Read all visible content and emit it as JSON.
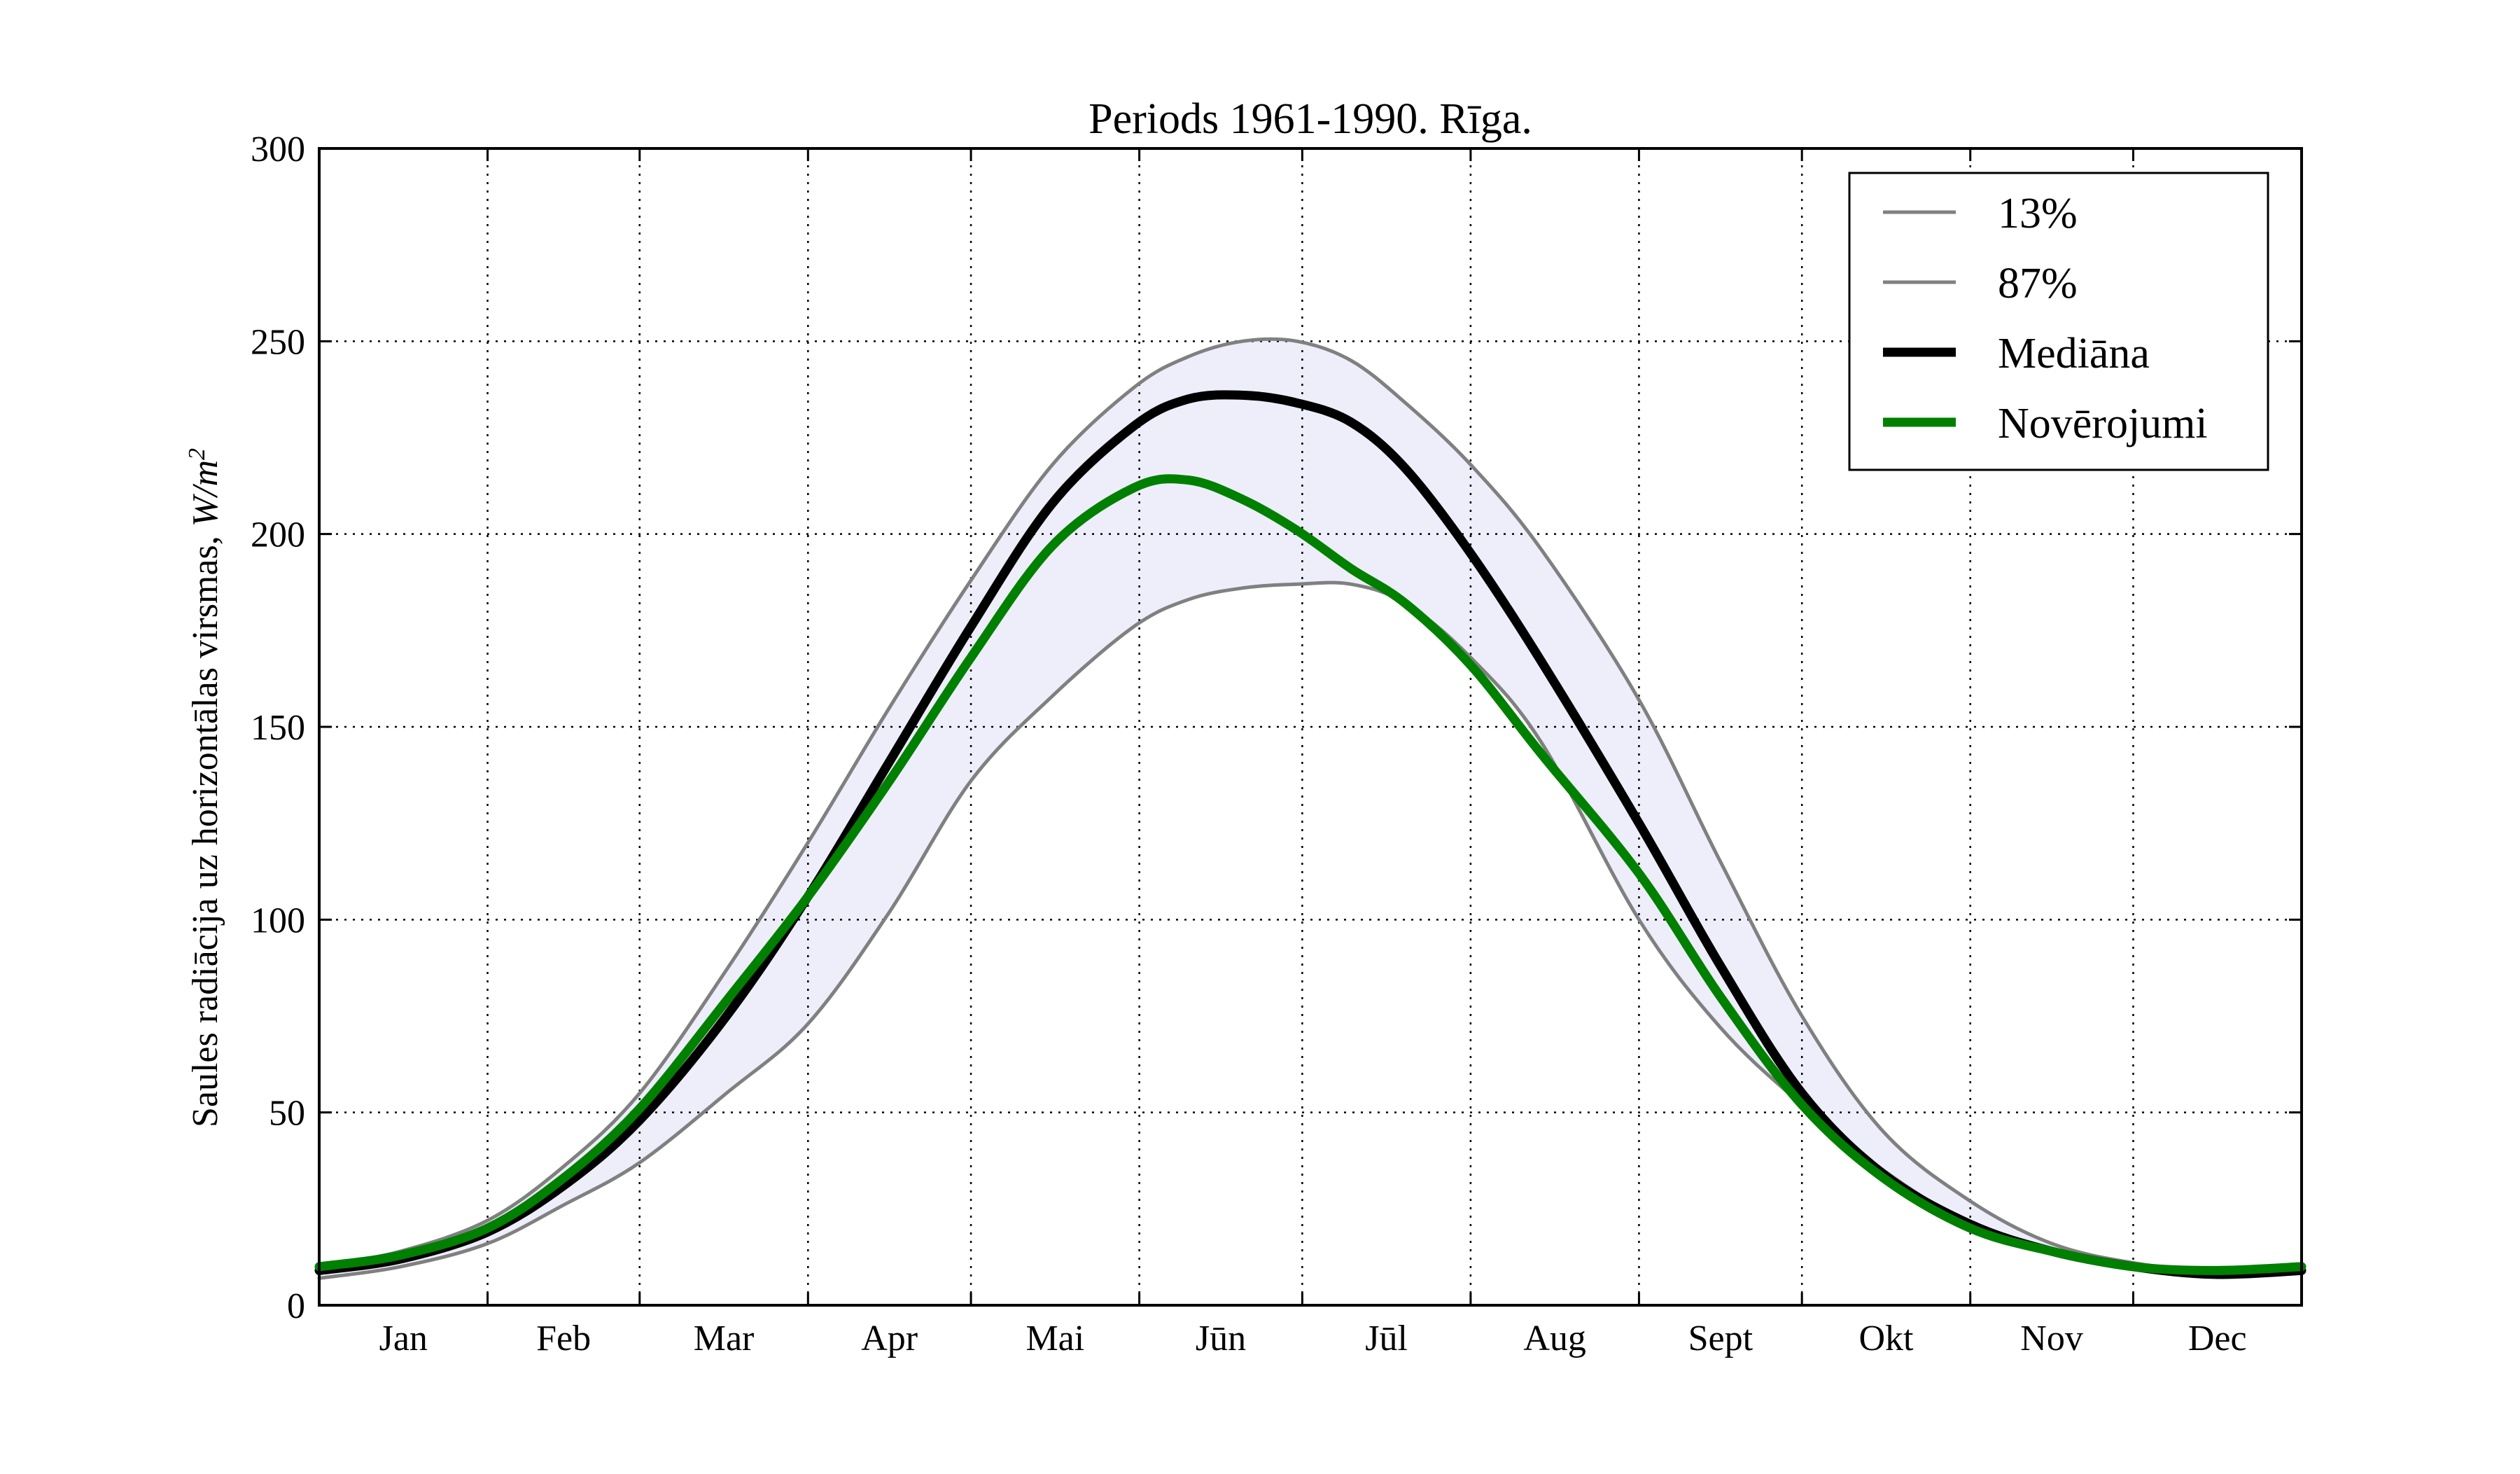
{
  "chart_data": {
    "type": "line",
    "title": "Periods 1961-1990. Rīga.",
    "ylabel_main": "Saules radiācija uz horizontālas virsmas, ",
    "ylabel_unit_base": "W/m",
    "ylabel_unit_exp": "2",
    "xlabel": "",
    "ylim": [
      0,
      300
    ],
    "xlim": [
      0,
      365
    ],
    "y_ticks": [
      0,
      50,
      100,
      150,
      200,
      250,
      300
    ],
    "month_boundaries": [
      31,
      59,
      90,
      120,
      151,
      181,
      212,
      243,
      273,
      304,
      334
    ],
    "month_labels": [
      "Jan",
      "Feb",
      "Mar",
      "Apr",
      "Mai",
      "Jūn",
      "Jūl",
      "Aug",
      "Sept",
      "Okt",
      "Nov",
      "Dec"
    ],
    "month_label_days": [
      15.5,
      45,
      74.5,
      105,
      135.5,
      166,
      196.5,
      227.5,
      258,
      288.5,
      319,
      349.5
    ],
    "grid": true,
    "legend_position": "top-right",
    "band_color": "#eeeefb",
    "x": [
      0,
      15,
      31,
      45,
      59,
      75,
      90,
      105,
      120,
      135,
      150,
      160,
      170,
      180,
      190,
      200,
      212,
      225,
      243,
      258,
      273,
      288,
      304,
      319,
      334,
      349,
      365
    ],
    "series": [
      {
        "name": "13%",
        "color": "#808080",
        "width": 5,
        "values": [
          10,
          14,
          22,
          36,
          55,
          87,
          120,
          155,
          188,
          218,
          238,
          246,
          250,
          250,
          245,
          234,
          218,
          196,
          157,
          115,
          75,
          45,
          27,
          16,
          11,
          9,
          10
        ]
      },
      {
        "name": "87%",
        "color": "#808080",
        "width": 5,
        "values": [
          7,
          10,
          16,
          26,
          37,
          55,
          73,
          102,
          136,
          158,
          176,
          183,
          186,
          187,
          187,
          182,
          168,
          146,
          100,
          72,
          52,
          35,
          21,
          14,
          10,
          8,
          9
        ]
      },
      {
        "name": "Mediāna",
        "color": "#000000",
        "width": 13,
        "values": [
          9,
          12,
          19,
          31,
          48,
          75,
          106,
          141,
          176,
          208,
          228,
          235,
          236,
          234,
          229,
          217,
          195,
          167,
          125,
          88,
          55,
          34,
          21,
          14,
          10,
          8,
          9
        ]
      },
      {
        "name": "Novērojumi",
        "color": "#008000",
        "width": 13,
        "values": [
          10,
          13,
          20,
          33,
          51,
          79,
          106,
          136,
          168,
          197,
          212,
          214,
          209,
          201,
          191,
          182,
          166,
          143,
          112,
          80,
          52,
          33,
          20,
          14,
          10,
          9,
          10
        ]
      }
    ]
  }
}
